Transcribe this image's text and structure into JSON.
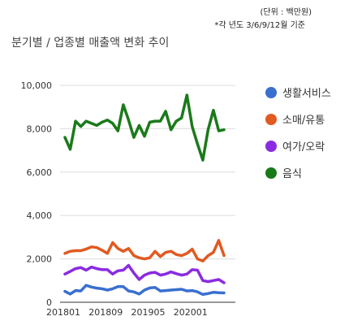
{
  "header": {
    "unit_note": "(단위 : 백만원)",
    "quarter_note": "*각 년도 3/6/9/12월 기준"
  },
  "colors": {
    "grid": "#dddddd",
    "axis": "#333333"
  },
  "chart_data": {
    "type": "line",
    "title": "분기별 / 업종별 매출액 변화 추이",
    "xlabel": "",
    "ylabel": "",
    "ylim": [
      0,
      10000
    ],
    "yticks": [
      0,
      2000,
      4000,
      6000,
      8000,
      10000
    ],
    "ytick_labels": [
      "0",
      "2,000",
      "4,000",
      "6,000",
      "8,000",
      "10,000"
    ],
    "xtick_labels": [
      "201801",
      "201809",
      "201905",
      "202001"
    ],
    "xtick_index": [
      0,
      8,
      16,
      24
    ],
    "grid": "horizontal",
    "legend_position": "right",
    "series": [
      {
        "name": "생활서비스",
        "color": "#3a6fcf",
        "values": [
          500,
          380,
          540,
          520,
          780,
          700,
          650,
          620,
          560,
          620,
          720,
          720,
          520,
          480,
          380,
          560,
          660,
          680,
          520,
          540,
          560,
          580,
          600,
          520,
          540,
          480,
          360,
          400,
          460,
          440,
          430
        ]
      },
      {
        "name": "소매/유통",
        "color": "#e05a22",
        "values": [
          2250,
          2350,
          2380,
          2380,
          2450,
          2550,
          2520,
          2400,
          2250,
          2750,
          2480,
          2350,
          2480,
          2150,
          2050,
          2000,
          2050,
          2350,
          2100,
          2300,
          2350,
          2200,
          2150,
          2250,
          2450,
          2000,
          1900,
          2150,
          2300,
          2850,
          2150
        ]
      },
      {
        "name": "여가/오락",
        "color": "#8a2be2",
        "values": [
          1300,
          1420,
          1550,
          1600,
          1480,
          1620,
          1550,
          1500,
          1500,
          1300,
          1450,
          1480,
          1700,
          1350,
          1050,
          1250,
          1350,
          1380,
          1250,
          1300,
          1400,
          1320,
          1250,
          1300,
          1500,
          1480,
          1000,
          950,
          1000,
          1050,
          900
        ]
      },
      {
        "name": "음식",
        "color": "#1a7a1a",
        "values": [
          7600,
          7050,
          8350,
          8100,
          8350,
          8250,
          8150,
          8300,
          8400,
          8250,
          7900,
          9100,
          8400,
          7600,
          8150,
          7650,
          8300,
          8350,
          8350,
          8800,
          7950,
          8350,
          8500,
          9550,
          8100,
          7300,
          6550,
          7950,
          8850,
          7900,
          7950
        ]
      }
    ]
  }
}
